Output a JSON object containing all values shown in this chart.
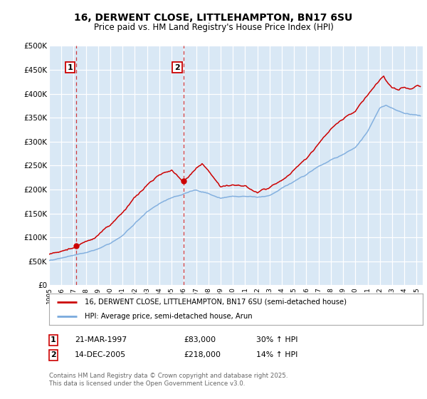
{
  "title": "16, DERWENT CLOSE, LITTLEHAMPTON, BN17 6SU",
  "subtitle": "Price paid vs. HM Land Registry's House Price Index (HPI)",
  "ylim": [
    0,
    500000
  ],
  "xlim_start": 1995.0,
  "xlim_end": 2025.5,
  "plot_bg_color": "#d9e8f5",
  "grid_color": "#ffffff",
  "red_line_color": "#cc0000",
  "blue_line_color": "#7aaadd",
  "marker1_date": 1997.22,
  "marker1_price": 83000,
  "marker2_date": 2005.96,
  "marker2_price": 218000,
  "legend_line1": "16, DERWENT CLOSE, LITTLEHAMPTON, BN17 6SU (semi-detached house)",
  "legend_line2": "HPI: Average price, semi-detached house, Arun",
  "note1_num": "1",
  "note1_date": "21-MAR-1997",
  "note1_price": "£83,000",
  "note1_hpi": "30% ↑ HPI",
  "note2_num": "2",
  "note2_date": "14-DEC-2005",
  "note2_price": "£218,000",
  "note2_hpi": "14% ↑ HPI",
  "footer": "Contains HM Land Registry data © Crown copyright and database right 2025.\nThis data is licensed under the Open Government Licence v3.0."
}
